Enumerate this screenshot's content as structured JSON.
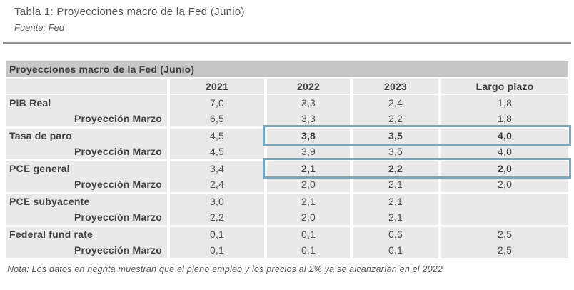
{
  "page": {
    "title": "Tabla 1: Proyecciones macro de la Fed (Junio)",
    "source": "Fuente: Fed",
    "note": "Nota: Los datos en negrita muestran que el pleno empleo y los precios al 2% ya se alcanzarían en el 2022"
  },
  "table": {
    "header": "Proyecciones macro de la Fed (Junio)",
    "columns": [
      "",
      "2021",
      "2022",
      "2023",
      "Largo plazo"
    ],
    "rows": [
      {
        "label": "PIB Real",
        "values": [
          "7,0",
          "3,3",
          "2,4",
          "1,8"
        ]
      },
      {
        "label": "Proyección Marzo",
        "values": [
          "6,5",
          "3,3",
          "2,2",
          "1,8"
        ]
      },
      {
        "label": "Tasa de paro",
        "values": [
          "4,5",
          "3,8",
          "3,5",
          "4,0"
        ]
      },
      {
        "label": "Proyección Marzo",
        "values": [
          "4,5",
          "3,9",
          "3,5",
          "4,0"
        ]
      },
      {
        "label": "PCE general",
        "values": [
          "3,4",
          "2,1",
          "2,2",
          "2,0"
        ]
      },
      {
        "label": "Proyección Marzo",
        "values": [
          "2,4",
          "2,0",
          "2,1",
          "2,0"
        ]
      },
      {
        "label": "PCE subyacente",
        "values": [
          "3,0",
          "2,1",
          "2,1",
          ""
        ]
      },
      {
        "label": "Proyección Marzo",
        "values": [
          "2,2",
          "2,0",
          "2,1",
          ""
        ]
      },
      {
        "label": "Federal fund rate",
        "values": [
          "0,1",
          "0,1",
          "0,6",
          "2,5"
        ]
      },
      {
        "label": "Proyección Marzo",
        "values": [
          "0,1",
          "0,1",
          "0,1",
          "2,5"
        ]
      }
    ],
    "highlights": [
      {
        "row": 2,
        "col_start": 2,
        "col_end": 4
      },
      {
        "row": 4,
        "col_start": 2,
        "col_end": 4
      }
    ]
  },
  "colors": {
    "highlight_border": "#6caac8",
    "header_bar_bg": "#c7c7c8",
    "cell_bg": "#e9e9ea",
    "rule": "#8f9092"
  }
}
